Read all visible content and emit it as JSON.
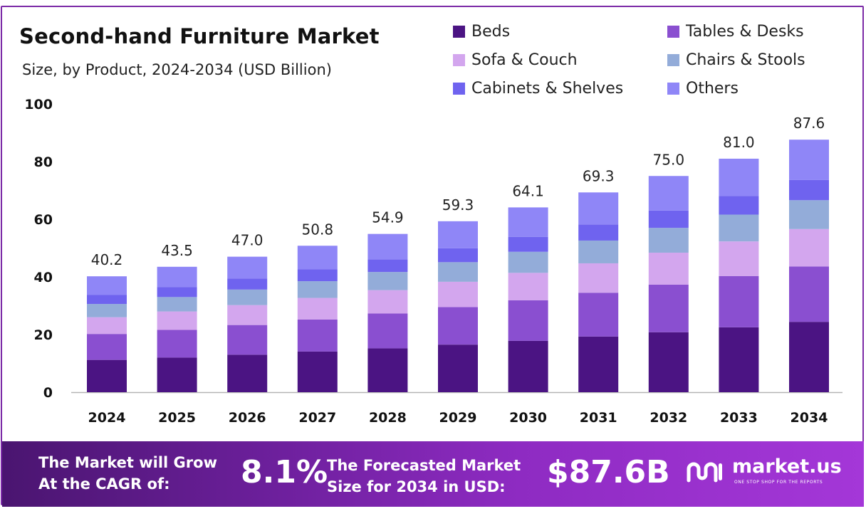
{
  "header": {
    "title": "Second-hand Furniture Market",
    "subtitle": "Size, by Product, 2024-2034 (USD Billion)"
  },
  "legend": {
    "items": [
      {
        "label": "Beds",
        "color": "#4b1483"
      },
      {
        "label": "Tables & Desks",
        "color": "#8a4fd0"
      },
      {
        "label": "Sofa & Couch",
        "color": "#d3a6ee"
      },
      {
        "label": "Chairs & Stools",
        "color": "#93acd9"
      },
      {
        "label": "Cabinets & Shelves",
        "color": "#6f63ef"
      },
      {
        "label": "Others",
        "color": "#8f86f7"
      }
    ]
  },
  "chart_data": {
    "type": "bar",
    "stacked": true,
    "categories": [
      "2024",
      "2025",
      "2026",
      "2027",
      "2028",
      "2029",
      "2030",
      "2031",
      "2032",
      "2033",
      "2034"
    ],
    "series": [
      {
        "name": "Beds",
        "color": "#4b1483",
        "values": [
          11.2,
          12.0,
          13.0,
          14.1,
          15.2,
          16.5,
          17.8,
          19.3,
          20.8,
          22.5,
          24.4
        ]
      },
      {
        "name": "Tables & Desks",
        "color": "#8a4fd0",
        "values": [
          9.0,
          9.6,
          10.3,
          11.1,
          12.1,
          13.0,
          14.1,
          15.2,
          16.5,
          17.8,
          19.2
        ]
      },
      {
        "name": "Sofa & Couch",
        "color": "#d3a6ee",
        "values": [
          5.8,
          6.4,
          6.9,
          7.5,
          8.1,
          8.8,
          9.5,
          10.2,
          11.1,
          12.0,
          13.0
        ]
      },
      {
        "name": "Chairs & Stools",
        "color": "#93acd9",
        "values": [
          4.6,
          5.0,
          5.4,
          5.8,
          6.3,
          6.8,
          7.3,
          7.9,
          8.6,
          9.3,
          10.0
        ]
      },
      {
        "name": "Cabinets & Shelves",
        "color": "#6f63ef",
        "values": [
          3.2,
          3.5,
          3.8,
          4.1,
          4.4,
          4.8,
          5.2,
          5.6,
          6.0,
          6.5,
          7.0
        ]
      },
      {
        "name": "Others",
        "color": "#8f86f7",
        "values": [
          6.4,
          7.0,
          7.6,
          8.2,
          8.8,
          9.4,
          10.2,
          11.1,
          12.0,
          12.9,
          14.0
        ]
      }
    ],
    "totals": [
      "40.2",
      "43.5",
      "47.0",
      "50.8",
      "54.9",
      "59.3",
      "64.1",
      "69.3",
      "75.0",
      "81.0",
      "87.6"
    ],
    "yticks": [
      "0",
      "20",
      "40",
      "60",
      "80",
      "100"
    ],
    "ylim": [
      0,
      100
    ],
    "grid": false,
    "legend_position": "top-right"
  },
  "banner": {
    "cagr_label_line1": "The Market will Grow",
    "cagr_label_line2": "At the CAGR of:",
    "cagr_value": "8.1%",
    "forecast_label_line1": "The Forecasted Market",
    "forecast_label_line2": "Size for 2034 in USD:",
    "forecast_value": "$87.6B",
    "brand_name": "market.us",
    "brand_tagline": "ONE STOP SHOP FOR THE REPORTS"
  }
}
